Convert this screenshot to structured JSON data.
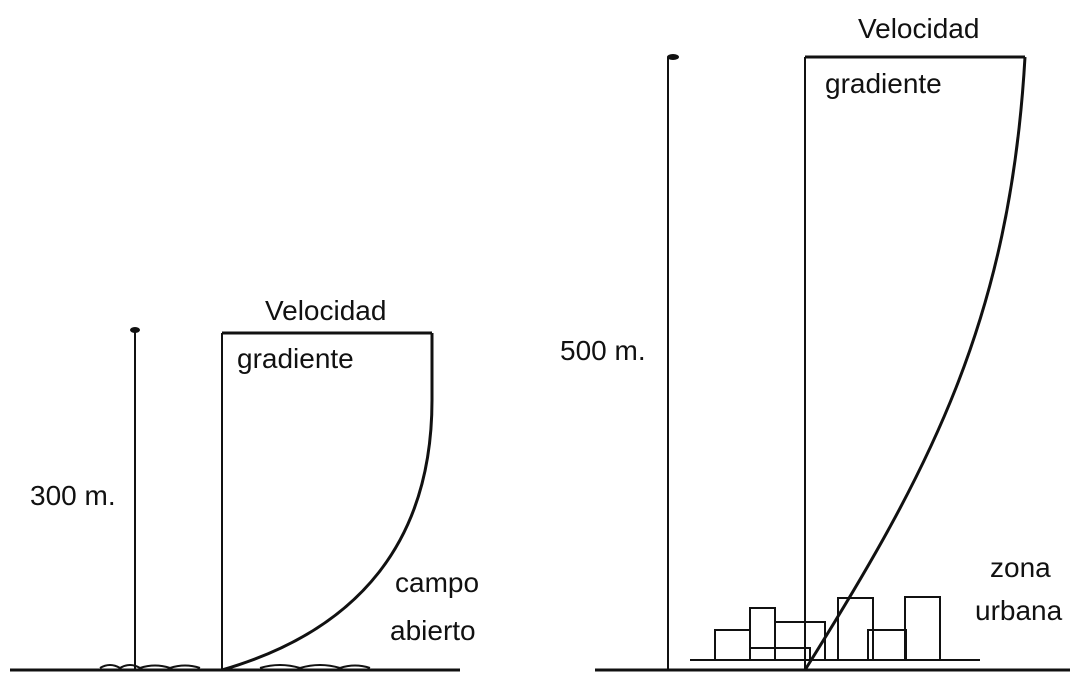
{
  "left": {
    "gradient_label": [
      "Velocidad",
      "gradiente"
    ],
    "height_label": "300 m.",
    "terrain_label": [
      "campo",
      "abierto"
    ]
  },
  "right": {
    "gradient_label": [
      "Velocidad",
      "gradiente"
    ],
    "height_label": "500 m.",
    "terrain_label": [
      "zona",
      "urbana"
    ]
  }
}
